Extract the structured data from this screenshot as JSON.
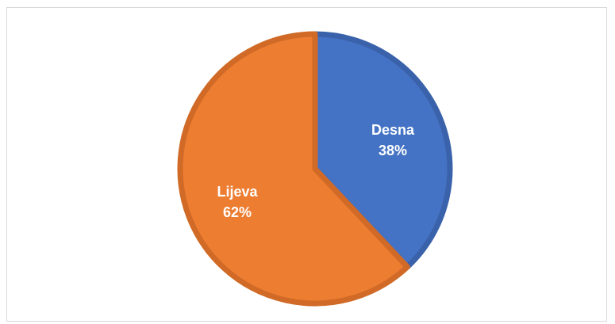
{
  "chart_data": {
    "type": "pie",
    "title": "",
    "start_angle_deg": 0,
    "direction": "clockwise",
    "slices": [
      {
        "label": "Desna",
        "value": 38,
        "display": "38%",
        "color": "#4472c4",
        "border": "#3a62aa"
      },
      {
        "label": "Lijeva",
        "value": 62,
        "display": "62%",
        "color": "#ed7d31",
        "border": "#d06a26"
      }
    ],
    "legend": "none",
    "data_labels": "inside"
  }
}
